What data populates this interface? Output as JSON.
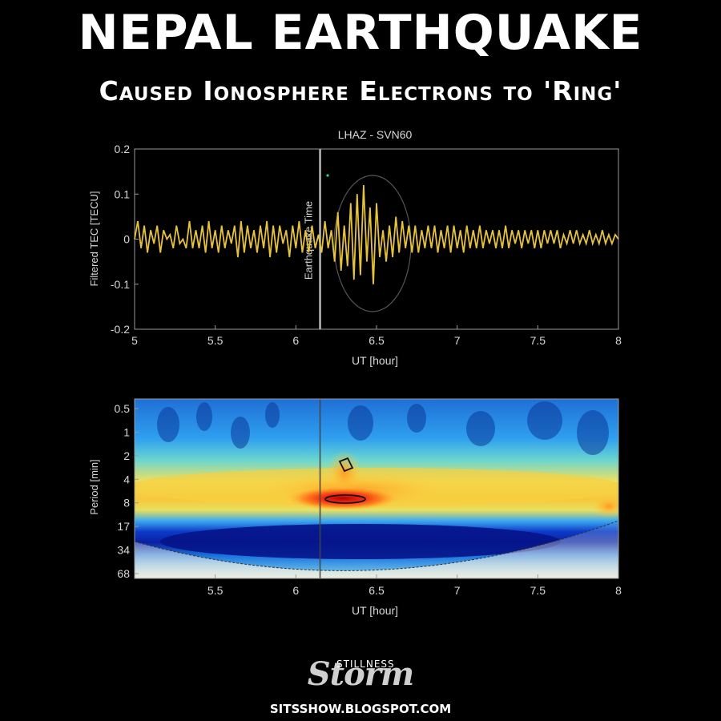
{
  "headline": {
    "title": "NEPAL EARTHQUAKE",
    "subtitle": "Caused Ionosphere Electrons to 'Ring'"
  },
  "branding": {
    "logo_top": "STILLNESS",
    "logo_word": "Storm",
    "site": "SITSSHOW.BLOGSPOT.COM"
  },
  "colors": {
    "series": "#e6c23c",
    "earthquake_line": "#b8b8b8",
    "ellipse": "#555555",
    "plot_bg": "#000000"
  },
  "chart_data": [
    {
      "type": "line",
      "title": "LHAZ - SVN60",
      "xlabel": "UT [hour]",
      "ylabel": "Filtered TEC [TECU]",
      "xlim": [
        5,
        8
      ],
      "ylim": [
        -0.2,
        0.2
      ],
      "xticks": [
        "5",
        "5.5",
        "6",
        "6.5",
        "7",
        "7.5",
        "8"
      ],
      "yticks": [
        "0.2",
        "0.1",
        "0",
        "-0.1",
        "-0.2"
      ],
      "annotation": "Earthquake Time",
      "earthquake_time": 6.15,
      "series": [
        {
          "x": [
            5.0,
            5.02,
            5.04,
            5.06,
            5.08,
            5.1,
            5.12,
            5.14,
            5.16,
            5.18,
            5.2,
            5.22,
            5.24,
            5.26,
            5.28,
            5.3,
            5.32,
            5.34,
            5.36,
            5.38,
            5.4,
            5.42,
            5.44,
            5.46,
            5.48,
            5.5,
            5.52,
            5.54,
            5.56,
            5.58,
            5.6,
            5.62,
            5.64,
            5.66,
            5.68,
            5.7,
            5.72,
            5.74,
            5.76,
            5.78,
            5.8,
            5.82,
            5.84,
            5.86,
            5.88,
            5.9,
            5.92,
            5.94,
            5.96,
            5.98,
            6.0,
            6.02,
            6.04,
            6.06,
            6.08,
            6.1,
            6.12,
            6.14,
            6.16,
            6.18,
            6.2,
            6.22,
            6.24,
            6.26,
            6.28,
            6.3,
            6.32,
            6.34,
            6.36,
            6.38,
            6.4,
            6.42,
            6.44,
            6.46,
            6.48,
            6.5,
            6.52,
            6.54,
            6.56,
            6.58,
            6.6,
            6.62,
            6.64,
            6.66,
            6.68,
            6.7,
            6.72,
            6.74,
            6.76,
            6.78,
            6.8,
            6.82,
            6.84,
            6.86,
            6.88,
            6.9,
            6.92,
            6.94,
            6.96,
            6.98,
            7.0,
            7.02,
            7.04,
            7.06,
            7.08,
            7.1,
            7.12,
            7.14,
            7.16,
            7.18,
            7.2,
            7.22,
            7.24,
            7.26,
            7.28,
            7.3,
            7.32,
            7.34,
            7.36,
            7.38,
            7.4,
            7.42,
            7.44,
            7.46,
            7.48,
            7.5,
            7.52,
            7.54,
            7.56,
            7.58,
            7.6,
            7.62,
            7.64,
            7.66,
            7.68,
            7.7,
            7.72,
            7.74,
            7.76,
            7.78,
            7.8,
            7.82,
            7.84,
            7.86,
            7.88,
            7.9,
            7.92,
            7.94,
            7.96,
            7.98,
            8.0
          ],
          "values": [
            0.0,
            0.04,
            -0.02,
            0.03,
            -0.03,
            0.02,
            -0.01,
            0.03,
            -0.03,
            0.02,
            0.0,
            0.01,
            -0.02,
            0.03,
            -0.01,
            0.0,
            -0.02,
            0.04,
            -0.02,
            0.02,
            -0.02,
            0.03,
            -0.03,
            0.04,
            -0.02,
            0.02,
            -0.03,
            0.03,
            -0.02,
            0.02,
            -0.01,
            0.03,
            -0.04,
            0.04,
            -0.03,
            0.03,
            -0.02,
            0.02,
            -0.03,
            0.03,
            -0.02,
            0.04,
            -0.04,
            0.03,
            -0.03,
            0.03,
            -0.01,
            0.02,
            -0.04,
            0.03,
            -0.02,
            0.04,
            -0.03,
            0.02,
            -0.03,
            0.03,
            -0.02,
            0.01,
            -0.03,
            0.04,
            -0.02,
            0.02,
            -0.05,
            0.06,
            -0.07,
            0.03,
            -0.06,
            0.08,
            -0.09,
            0.1,
            -0.08,
            0.12,
            -0.05,
            0.07,
            -0.1,
            0.08,
            -0.04,
            0.02,
            -0.05,
            0.03,
            -0.04,
            0.05,
            -0.03,
            0.04,
            -0.02,
            0.03,
            -0.03,
            0.03,
            -0.03,
            0.02,
            -0.02,
            0.03,
            -0.02,
            0.03,
            -0.03,
            0.02,
            -0.02,
            0.03,
            -0.03,
            0.03,
            -0.02,
            0.02,
            -0.03,
            0.03,
            -0.02,
            0.02,
            -0.02,
            0.03,
            -0.02,
            0.02,
            -0.01,
            0.02,
            -0.02,
            0.02,
            -0.02,
            0.03,
            -0.02,
            0.02,
            -0.01,
            0.02,
            -0.02,
            0.02,
            -0.01,
            0.02,
            -0.02,
            0.02,
            -0.02,
            0.02,
            -0.01,
            0.02,
            -0.01,
            0.02,
            -0.02,
            0.01,
            -0.01,
            0.02,
            -0.01,
            0.02,
            -0.01,
            0.01,
            -0.01,
            0.02,
            -0.01,
            0.01,
            -0.01,
            0.02,
            -0.01,
            0.01,
            -0.01,
            0.01,
            0.0
          ]
        }
      ]
    },
    {
      "type": "heatmap",
      "xlabel": "UT [hour]",
      "ylabel": "Period [min]",
      "xlim": [
        5,
        8
      ],
      "xticks": [
        "5.5",
        "6",
        "6.5",
        "7",
        "7.5",
        "8"
      ],
      "yticks": [
        "0.5",
        "1",
        "2",
        "4",
        "8",
        "17",
        "34",
        "68"
      ],
      "earthquake_time": 6.15,
      "peak": {
        "x": 6.31,
        "period_min": 8
      }
    }
  ]
}
